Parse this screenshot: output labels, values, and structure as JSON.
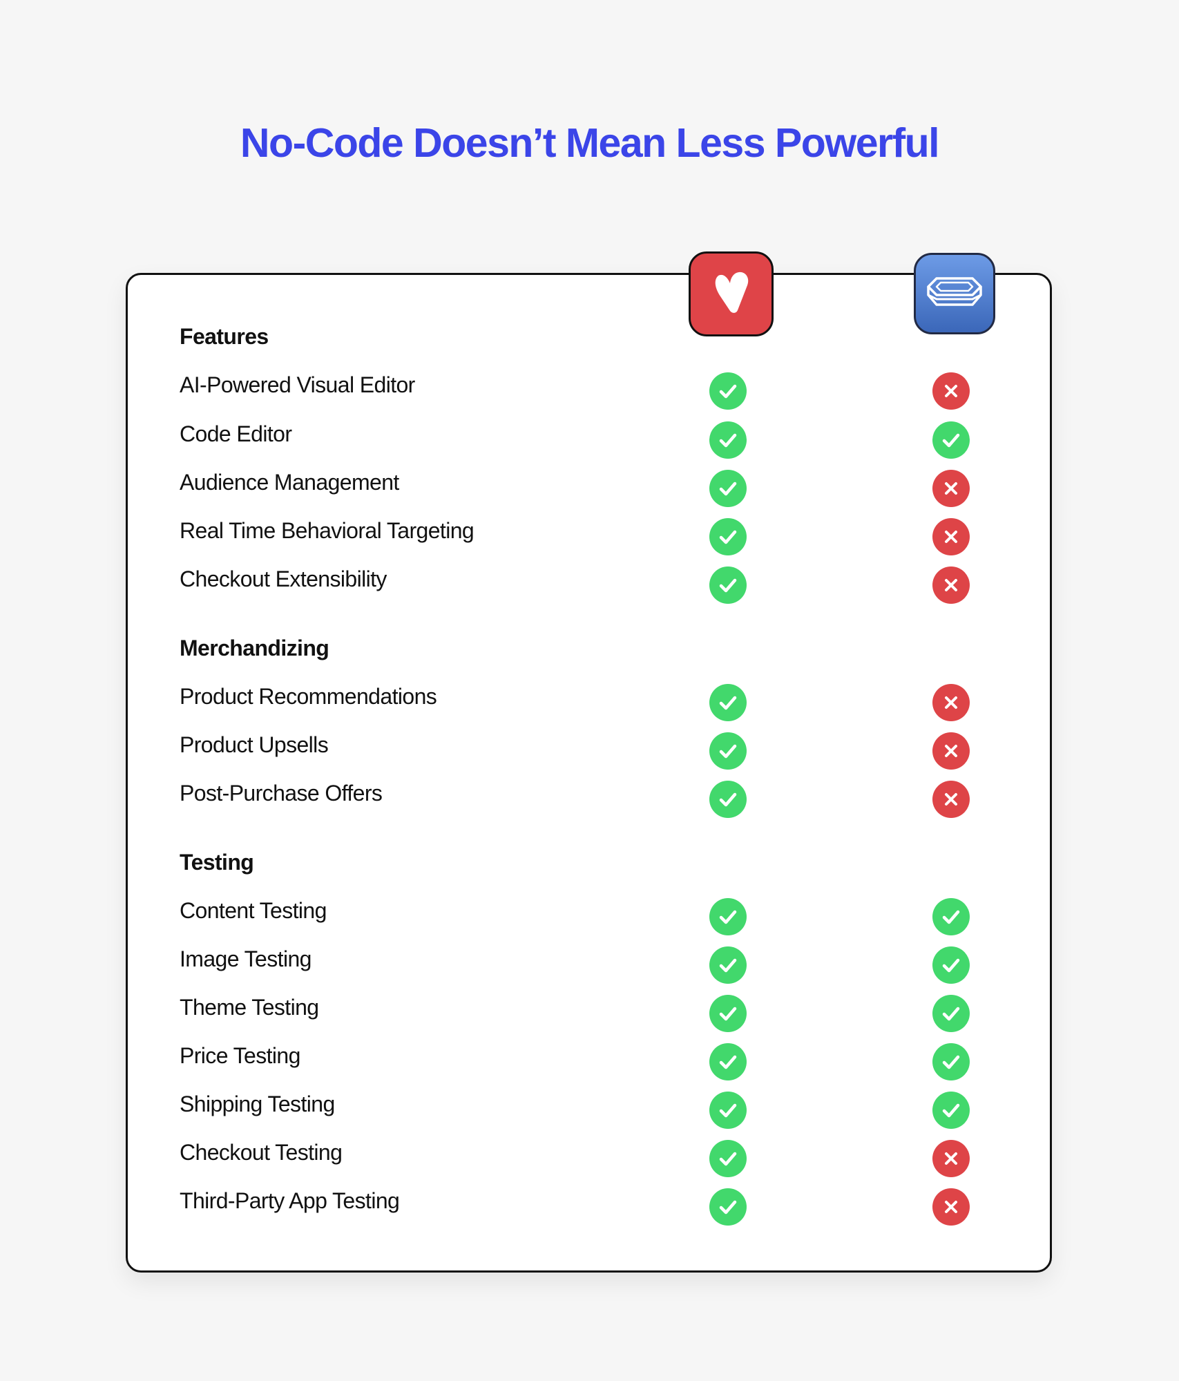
{
  "title": "No-Code Doesn’t Mean Less Powerful",
  "colors": {
    "title": "#3b45e8",
    "check": "#42d86c",
    "cross": "#de4447",
    "brand_a": "#df4448",
    "brand_b": "#4a78c9"
  },
  "logos": {
    "a_icon": "v-logo-icon",
    "b_icon": "stacked-layers-logo-icon"
  },
  "sections": [
    {
      "title": "Features",
      "rows": [
        {
          "label": "AI-Powered Visual Editor",
          "a": true,
          "b": false
        },
        {
          "label": "Code Editor",
          "a": true,
          "b": true
        },
        {
          "label": "Audience Management",
          "a": true,
          "b": false
        },
        {
          "label": "Real Time Behavioral Targeting",
          "a": true,
          "b": false
        },
        {
          "label": "Checkout Extensibility",
          "a": true,
          "b": false
        }
      ]
    },
    {
      "title": "Merchandizing",
      "rows": [
        {
          "label": "Product Recommendations",
          "a": true,
          "b": false
        },
        {
          "label": "Product Upsells",
          "a": true,
          "b": false
        },
        {
          "label": "Post-Purchase Offers",
          "a": true,
          "b": false
        }
      ]
    },
    {
      "title": "Testing",
      "rows": [
        {
          "label": "Content Testing",
          "a": true,
          "b": true
        },
        {
          "label": "Image Testing",
          "a": true,
          "b": true
        },
        {
          "label": "Theme Testing",
          "a": true,
          "b": true
        },
        {
          "label": "Price Testing",
          "a": true,
          "b": true
        },
        {
          "label": "Shipping Testing",
          "a": true,
          "b": true
        },
        {
          "label": "Checkout Testing",
          "a": true,
          "b": false
        },
        {
          "label": "Third-Party App Testing",
          "a": true,
          "b": false
        }
      ]
    }
  ]
}
